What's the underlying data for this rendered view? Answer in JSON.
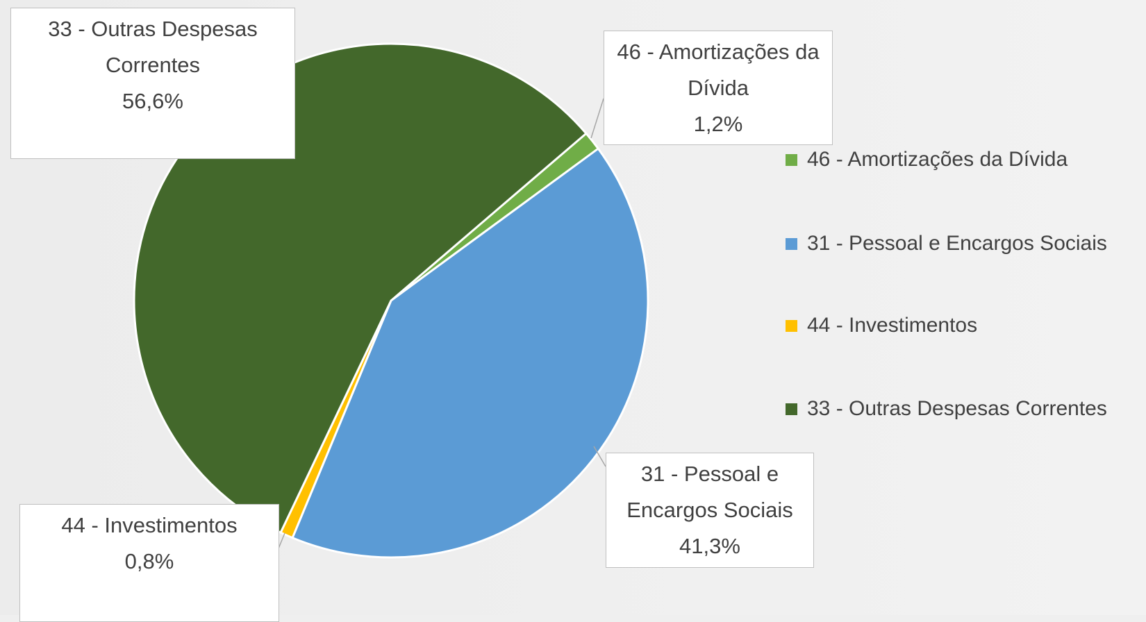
{
  "chart_data": {
    "type": "pie",
    "categories": [
      "46 - Amortizações da Dívida",
      "31 - Pessoal e Encargos Sociais",
      "44 - Investimentos",
      "33 - Outras Despesas Correntes"
    ],
    "values": [
      1.2,
      41.3,
      0.8,
      56.6
    ],
    "value_labels": [
      "1,2%",
      "41,3%",
      "0,8%",
      "56,6%"
    ],
    "colors": [
      "#70ad47",
      "#5b9bd5",
      "#ffc000",
      "#43682b"
    ],
    "legend": "right"
  }
}
